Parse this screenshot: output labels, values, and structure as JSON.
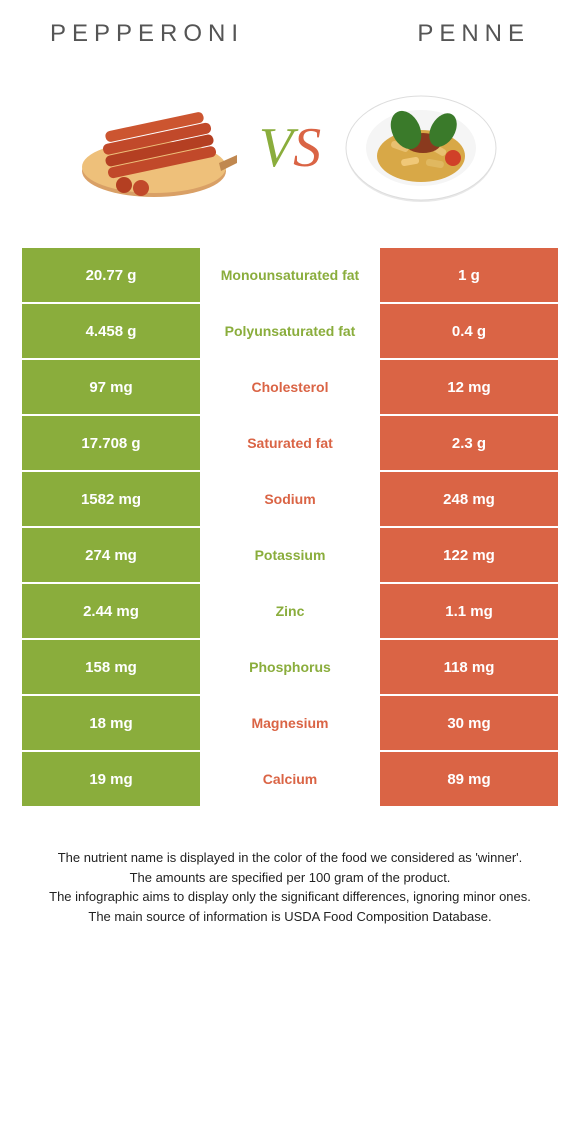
{
  "header": {
    "left_title": "PEPPERONI",
    "right_title": "PENNE",
    "vs_v": "V",
    "vs_s": "S"
  },
  "colors": {
    "left": "#8aad3c",
    "right": "#da6445",
    "row_border": "#ffffff",
    "text_dark": "#333333"
  },
  "table": {
    "rows": [
      {
        "left": "20.77 g",
        "label": "Monounsaturated fat",
        "right": "1 g",
        "winner": "left"
      },
      {
        "left": "4.458 g",
        "label": "Polyunsaturated fat",
        "right": "0.4 g",
        "winner": "left"
      },
      {
        "left": "97 mg",
        "label": "Cholesterol",
        "right": "12 mg",
        "winner": "right"
      },
      {
        "left": "17.708 g",
        "label": "Saturated fat",
        "right": "2.3 g",
        "winner": "right"
      },
      {
        "left": "1582 mg",
        "label": "Sodium",
        "right": "248 mg",
        "winner": "right"
      },
      {
        "left": "274 mg",
        "label": "Potassium",
        "right": "122 mg",
        "winner": "left"
      },
      {
        "left": "2.44 mg",
        "label": "Zinc",
        "right": "1.1 mg",
        "winner": "left"
      },
      {
        "left": "158 mg",
        "label": "Phosphorus",
        "right": "118 mg",
        "winner": "left"
      },
      {
        "left": "18 mg",
        "label": "Magnesium",
        "right": "30 mg",
        "winner": "right"
      },
      {
        "left": "19 mg",
        "label": "Calcium",
        "right": "89 mg",
        "winner": "right"
      }
    ]
  },
  "caption": {
    "line1": "The nutrient name is displayed in the color of the food we considered as 'winner'.",
    "line2": "The amounts are specified per 100 gram of the product.",
    "line3": "The infographic aims to display only the significant differences, ignoring minor ones.",
    "line4": "The main source of information is USDA Food Composition Database."
  }
}
